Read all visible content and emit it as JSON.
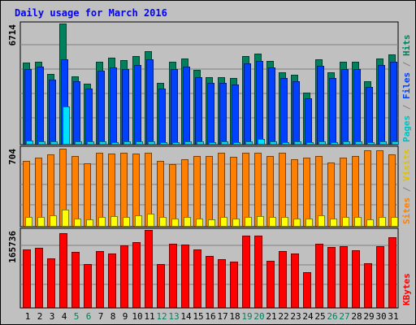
{
  "chart_data": [
    {
      "type": "bar",
      "title": "Daily usage for March 2016",
      "categories": [
        "1",
        "2",
        "3",
        "4",
        "5",
        "6",
        "7",
        "8",
        "9",
        "10",
        "11",
        "12",
        "13",
        "14",
        "15",
        "16",
        "17",
        "18",
        "19",
        "20",
        "21",
        "22",
        "23",
        "24",
        "25",
        "26",
        "27",
        "28",
        "29",
        "30",
        "31"
      ],
      "weekend_days": [
        "5",
        "6",
        "12",
        "13",
        "19",
        "20",
        "26",
        "27"
      ],
      "ymax_label": "6714",
      "ylim": [
        0,
        6714
      ],
      "series": [
        {
          "name": "Hits",
          "color": "#00805c",
          "values": [
            4540,
            4560,
            3910,
            6714,
            3780,
            3370,
            4570,
            4800,
            4650,
            4900,
            5190,
            3380,
            4560,
            4750,
            4130,
            3730,
            3730,
            3670,
            4880,
            5030,
            4610,
            4000,
            3870,
            2870,
            4740,
            3990,
            4580,
            4570,
            3480,
            4770,
            5010
          ]
        },
        {
          "name": "Files",
          "color": "#0040ff",
          "values": [
            4190,
            4300,
            3570,
            4730,
            3500,
            3080,
            4100,
            4270,
            4190,
            4420,
            4740,
            3080,
            4170,
            4290,
            3720,
            3380,
            3400,
            3320,
            4470,
            4630,
            4260,
            3660,
            3510,
            2560,
            4360,
            3670,
            4170,
            4180,
            3160,
            4390,
            4590
          ]
        },
        {
          "name": "Pages",
          "color": "#00e0ff",
          "values": [
            160,
            150,
            120,
            2100,
            130,
            140,
            130,
            110,
            120,
            150,
            130,
            110,
            100,
            120,
            130,
            110,
            120,
            100,
            150,
            250,
            120,
            110,
            120,
            90,
            120,
            110,
            120,
            120,
            100,
            130,
            120
          ]
        }
      ],
      "ylabels": [
        {
          "text": "Pages",
          "color": "#00c0c0"
        },
        {
          "text": " / ",
          "color": "#808080"
        },
        {
          "text": "Files",
          "color": "#0040ff"
        },
        {
          "text": " / ",
          "color": "#808080"
        },
        {
          "text": "Hits",
          "color": "#00805c"
        }
      ]
    },
    {
      "type": "bar",
      "ymax_label": "704",
      "ylim": [
        0,
        704
      ],
      "series": [
        {
          "name": "Sites",
          "color": "#ff8000",
          "values": [
            590,
            620,
            650,
            704,
            640,
            570,
            670,
            660,
            670,
            660,
            670,
            590,
            560,
            610,
            640,
            640,
            670,
            630,
            670,
            670,
            640,
            670,
            610,
            620,
            640,
            580,
            620,
            640,
            690,
            690,
            650
          ]
        },
        {
          "name": "Visits",
          "color": "#ffff00",
          "values": [
            80,
            80,
            100,
            150,
            70,
            60,
            80,
            90,
            80,
            100,
            110,
            80,
            70,
            80,
            70,
            60,
            80,
            70,
            80,
            90,
            80,
            80,
            70,
            70,
            100,
            70,
            80,
            80,
            60,
            80,
            80
          ]
        }
      ],
      "ylabels": [
        {
          "text": "Sites",
          "color": "#ff8000"
        },
        {
          "text": " / ",
          "color": "#808080"
        },
        {
          "text": "Visits",
          "color": "#e0c000"
        }
      ]
    },
    {
      "type": "bar",
      "ymax_label": "165736",
      "ylim": [
        0,
        165736
      ],
      "series": [
        {
          "name": "KBytes",
          "color": "#ff0000",
          "values": [
            123000,
            128000,
            104000,
            159000,
            118000,
            92000,
            121000,
            116000,
            133000,
            140000,
            165736,
            93000,
            136000,
            134000,
            124000,
            110000,
            103000,
            98000,
            153000,
            153000,
            100000,
            120000,
            116000,
            75000,
            136000,
            129000,
            130000,
            122000,
            94000,
            130000,
            150000
          ]
        }
      ],
      "ylabels": [
        {
          "text": "KBytes",
          "color": "#ff0000"
        }
      ]
    }
  ]
}
